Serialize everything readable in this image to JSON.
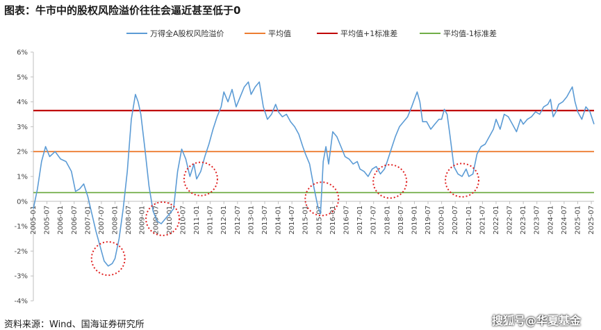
{
  "title": "图表：牛市中的股权风险溢价往往会逼近甚至低于0",
  "source": "资料来源：Wind、国海证券研究所",
  "watermark": "搜狐号@华夏基金",
  "colors": {
    "series": "#5b9bd5",
    "mean": "#ed7d31",
    "upper": "#c00000",
    "lower": "#70ad47",
    "circle": "#e02020"
  },
  "chart_data": {
    "type": "line",
    "title": "图表：牛市中的股权风险溢价往往会逼近甚至低于0",
    "ylabel": "",
    "xlabel": "",
    "ylim": [
      -4,
      6
    ],
    "yticks": [
      "-4%",
      "-3%",
      "-2%",
      "-1%",
      "0%",
      "1%",
      "2%",
      "3%",
      "4%",
      "5%",
      "6%"
    ],
    "xticks": [
      "2005-01",
      "2005-07",
      "2006-01",
      "2006-07",
      "2007-01",
      "2007-07",
      "2008-01",
      "2008-07",
      "2009-01",
      "2009-07",
      "2010-01",
      "2010-07",
      "2011-01",
      "2011-07",
      "2012-01",
      "2012-07",
      "2013-01",
      "2013-07",
      "2014-01",
      "2014-07",
      "2015-01",
      "2015-07",
      "2016-01",
      "2016-07",
      "2017-01",
      "2017-07",
      "2018-01",
      "2018-07",
      "2019-01",
      "2019-07",
      "2020-01",
      "2020-07",
      "2021-01",
      "2021-07",
      "2022-01",
      "2022-07",
      "2023-01",
      "2023-07",
      "2024-01",
      "2024-07",
      "2025-01",
      "2025-07"
    ],
    "legend_position": "top",
    "series": [
      {
        "name": "万得全A股权风险溢价",
        "x": [
          2005.0,
          2005.15,
          2005.3,
          2005.45,
          2005.6,
          2005.8,
          2006.0,
          2006.2,
          2006.4,
          2006.55,
          2006.7,
          2006.85,
          2007.0,
          2007.15,
          2007.3,
          2007.45,
          2007.6,
          2007.75,
          2007.9,
          2008.0,
          2008.15,
          2008.3,
          2008.45,
          2008.6,
          2008.75,
          2008.85,
          2008.95,
          2009.1,
          2009.25,
          2009.4,
          2009.55,
          2009.7,
          2009.85,
          2010.0,
          2010.15,
          2010.3,
          2010.45,
          2010.6,
          2010.75,
          2010.9,
          2011.0,
          2011.15,
          2011.3,
          2011.45,
          2011.6,
          2011.75,
          2011.9,
          2012.0,
          2012.15,
          2012.3,
          2012.45,
          2012.6,
          2012.75,
          2012.9,
          2013.0,
          2013.15,
          2013.3,
          2013.45,
          2013.6,
          2013.75,
          2013.9,
          2014.0,
          2014.15,
          2014.3,
          2014.45,
          2014.6,
          2014.75,
          2014.9,
          2015.0,
          2015.15,
          2015.3,
          2015.45,
          2015.55,
          2015.65,
          2015.75,
          2015.85,
          2016.0,
          2016.15,
          2016.3,
          2016.45,
          2016.6,
          2016.75,
          2016.9,
          2017.0,
          2017.15,
          2017.3,
          2017.45,
          2017.6,
          2017.75,
          2017.9,
          2018.0,
          2018.15,
          2018.3,
          2018.45,
          2018.6,
          2018.75,
          2018.9,
          2019.0,
          2019.1,
          2019.2,
          2019.3,
          2019.45,
          2019.6,
          2019.75,
          2019.9,
          2020.0,
          2020.1,
          2020.2,
          2020.3,
          2020.45,
          2020.6,
          2020.75,
          2020.9,
          2021.0,
          2021.15,
          2021.3,
          2021.45,
          2021.6,
          2021.75,
          2021.9,
          2022.0,
          2022.15,
          2022.3,
          2022.45,
          2022.6,
          2022.75,
          2022.9,
          2023.0,
          2023.15,
          2023.3,
          2023.45,
          2023.6,
          2023.75,
          2023.9,
          2024.0,
          2024.1,
          2024.2,
          2024.3,
          2024.45,
          2024.6,
          2024.7,
          2024.8,
          2024.9,
          2025.0,
          2025.15,
          2025.3,
          2025.45,
          2025.6
        ],
        "values": [
          -0.3,
          0.5,
          1.6,
          2.2,
          1.8,
          2.0,
          1.7,
          1.6,
          1.2,
          0.4,
          0.5,
          0.7,
          0.2,
          -0.5,
          -1.2,
          -1.8,
          -2.4,
          -2.6,
          -2.5,
          -2.3,
          -1.5,
          -0.3,
          1.2,
          3.3,
          4.3,
          4.0,
          3.5,
          2.1,
          0.6,
          -0.4,
          -0.8,
          -0.9,
          -0.7,
          -0.5,
          -0.3,
          1.2,
          2.1,
          1.7,
          1.0,
          1.5,
          0.9,
          1.2,
          1.8,
          2.3,
          2.9,
          3.4,
          3.8,
          4.4,
          4.0,
          4.5,
          3.8,
          4.2,
          4.6,
          4.8,
          4.3,
          4.6,
          4.8,
          3.8,
          3.3,
          3.5,
          3.9,
          3.6,
          3.4,
          3.5,
          3.2,
          3.0,
          2.7,
          2.2,
          1.9,
          1.5,
          0.6,
          -0.2,
          -0.5,
          1.6,
          2.2,
          1.5,
          2.8,
          2.6,
          2.2,
          1.8,
          1.7,
          1.5,
          1.6,
          1.3,
          1.2,
          1.0,
          1.3,
          1.4,
          1.1,
          1.3,
          1.6,
          2.1,
          2.6,
          3.0,
          3.2,
          3.4,
          3.8,
          4.1,
          4.4,
          4.0,
          3.2,
          3.2,
          2.9,
          3.1,
          3.3,
          3.3,
          3.7,
          3.5,
          2.7,
          1.4,
          1.1,
          1.0,
          1.3,
          1.0,
          1.1,
          1.9,
          2.2,
          2.3,
          2.6,
          2.9,
          3.3,
          2.9,
          3.5,
          3.4,
          3.1,
          2.8,
          3.3,
          3.1,
          3.3,
          3.4,
          3.6,
          3.5,
          3.8,
          3.9,
          4.1,
          3.4,
          3.6,
          3.9,
          4.0,
          4.2,
          4.4,
          4.6,
          4.0,
          3.6,
          3.3,
          3.8,
          3.6,
          3.1
        ]
      },
      {
        "name": "平均值",
        "values": [
          2.0
        ]
      },
      {
        "name": "平均值+1标准差",
        "values": [
          3.65
        ]
      },
      {
        "name": "平均值-1标准差",
        "values": [
          0.35
        ]
      }
    ]
  },
  "highlight_circles": [
    {
      "x": 2007.75,
      "y": -2.3
    },
    {
      "x": 2009.75,
      "y": -0.7
    },
    {
      "x": 2011.15,
      "y": 0.9
    },
    {
      "x": 2015.6,
      "y": 0.1
    },
    {
      "x": 2018.1,
      "y": 0.8
    },
    {
      "x": 2020.75,
      "y": 0.85
    }
  ]
}
